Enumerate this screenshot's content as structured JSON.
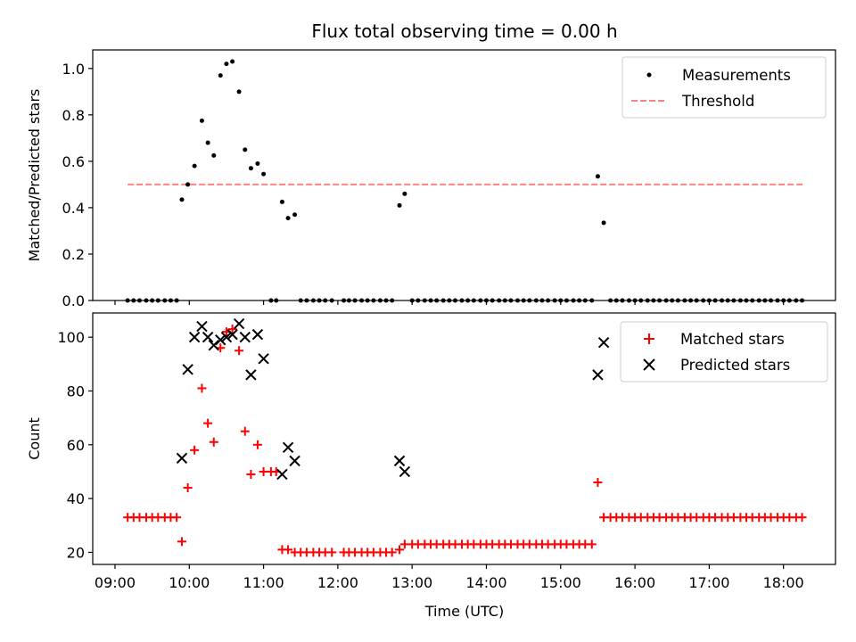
{
  "chart_data": {
    "title": "Flux total observing time = 0.00 h",
    "xlabel": "Time (UTC)",
    "x_ticks": [
      "09:00",
      "10:00",
      "11:00",
      "12:00",
      "13:00",
      "14:00",
      "15:00",
      "16:00",
      "17:00",
      "18:00"
    ],
    "x_tick_hours": [
      9,
      10,
      11,
      12,
      13,
      14,
      15,
      16,
      17,
      18
    ],
    "xlim_hours": [
      8.7,
      18.7
    ],
    "panels": [
      {
        "type": "scatter",
        "ylabel": "Matched/Predicted stars",
        "ylim": [
          0,
          1.08
        ],
        "y_ticks": [
          "0.0",
          "0.2",
          "0.4",
          "0.6",
          "0.8",
          "1.0"
        ],
        "y_tick_values": [
          0,
          0.2,
          0.4,
          0.6,
          0.8,
          1.0
        ],
        "legend": {
          "position": "upper right",
          "entries": [
            "Measurements",
            "Threshold"
          ]
        },
        "threshold": {
          "name": "Threshold",
          "value": 0.5,
          "x_range_hours": [
            9.17,
            18.27
          ],
          "color": "#ff8080",
          "style": "dashed"
        },
        "series": [
          {
            "name": "Measurements",
            "marker": "dot",
            "color": "#000000",
            "x_hours": [
              9.17,
              9.25,
              9.33,
              9.42,
              9.5,
              9.58,
              9.67,
              9.75,
              9.83,
              9.9,
              9.98,
              10.07,
              10.17,
              10.25,
              10.33,
              10.42,
              10.5,
              10.58,
              10.67,
              10.75,
              10.83,
              10.92,
              11.0,
              11.1,
              11.17,
              11.25,
              11.33,
              11.42,
              11.5,
              11.58,
              11.67,
              11.75,
              11.83,
              11.92,
              12.08,
              12.15,
              12.23,
              12.32,
              12.4,
              12.48,
              12.57,
              12.65,
              12.73,
              12.83,
              12.9,
              13.0,
              13.08,
              13.17,
              13.25,
              13.33,
              13.42,
              13.5,
              13.58,
              13.67,
              13.75,
              13.83,
              13.92,
              14.0,
              14.08,
              14.17,
              14.25,
              14.33,
              14.42,
              14.5,
              14.58,
              14.67,
              14.75,
              14.83,
              14.92,
              15.0,
              15.08,
              15.17,
              15.25,
              15.33,
              15.42,
              15.5,
              15.58,
              15.67,
              15.75,
              15.83,
              15.92,
              16.0,
              16.08,
              16.17,
              16.25,
              16.33,
              16.42,
              16.5,
              16.58,
              16.67,
              16.75,
              16.83,
              16.92,
              17.0,
              17.08,
              17.17,
              17.25,
              17.33,
              17.42,
              17.5,
              17.58,
              17.67,
              17.75,
              17.83,
              17.92,
              18.0,
              18.08,
              18.17,
              18.25
            ],
            "values": [
              0,
              0,
              0,
              0,
              0,
              0,
              0,
              0,
              0,
              0.435,
              0.5,
              0.58,
              0.775,
              0.68,
              0.625,
              0.97,
              1.02,
              1.03,
              0.9,
              0.65,
              0.57,
              0.59,
              0.545,
              0,
              0,
              0.425,
              0.355,
              0.37,
              0,
              0,
              0,
              0,
              0,
              0,
              0,
              0,
              0,
              0,
              0,
              0,
              0,
              0,
              0,
              0.41,
              0.46,
              0,
              0,
              0,
              0,
              0,
              0,
              0,
              0,
              0,
              0,
              0,
              0,
              0,
              0,
              0,
              0,
              0,
              0,
              0,
              0,
              0,
              0,
              0,
              0,
              0,
              0,
              0,
              0,
              0,
              0,
              0.535,
              0.335,
              0,
              0,
              0,
              0,
              0,
              0,
              0,
              0,
              0,
              0,
              0,
              0,
              0,
              0,
              0,
              0,
              0,
              0,
              0,
              0,
              0,
              0,
              0,
              0,
              0,
              0,
              0,
              0,
              0,
              0,
              0,
              0
            ]
          }
        ]
      },
      {
        "type": "scatter",
        "ylabel": "Count",
        "ylim": [
          15.5,
          109
        ],
        "y_ticks": [
          "20",
          "40",
          "60",
          "80",
          "100"
        ],
        "y_tick_values": [
          20,
          40,
          60,
          80,
          100
        ],
        "legend": {
          "position": "upper right",
          "entries": [
            "Matched stars",
            "Predicted stars"
          ]
        },
        "series": [
          {
            "name": "Matched stars",
            "marker": "plus",
            "color": "#ff0000",
            "x_hours": [
              9.17,
              9.25,
              9.33,
              9.42,
              9.5,
              9.58,
              9.67,
              9.75,
              9.83,
              9.9,
              9.98,
              10.07,
              10.17,
              10.25,
              10.33,
              10.42,
              10.5,
              10.58,
              10.67,
              10.75,
              10.83,
              10.92,
              11.0,
              11.1,
              11.17,
              11.25,
              11.33,
              11.42,
              11.5,
              11.58,
              11.67,
              11.75,
              11.83,
              11.92,
              12.08,
              12.15,
              12.23,
              12.32,
              12.4,
              12.48,
              12.57,
              12.65,
              12.73,
              12.83,
              12.9,
              13.0,
              13.08,
              13.17,
              13.25,
              13.33,
              13.42,
              13.5,
              13.58,
              13.67,
              13.75,
              13.83,
              13.92,
              14.0,
              14.08,
              14.17,
              14.25,
              14.33,
              14.42,
              14.5,
              14.58,
              14.67,
              14.75,
              14.83,
              14.92,
              15.0,
              15.08,
              15.17,
              15.25,
              15.33,
              15.42,
              15.5,
              15.58,
              15.67,
              15.75,
              15.83,
              15.92,
              16.0,
              16.08,
              16.17,
              16.25,
              16.33,
              16.42,
              16.5,
              16.58,
              16.67,
              16.75,
              16.83,
              16.92,
              17.0,
              17.08,
              17.17,
              17.25,
              17.33,
              17.42,
              17.5,
              17.58,
              17.67,
              17.75,
              17.83,
              17.92,
              18.0,
              18.08,
              18.17,
              18.25
            ],
            "values": [
              33,
              33,
              33,
              33,
              33,
              33,
              33,
              33,
              33,
              24,
              44,
              58,
              81,
              68,
              61,
              96,
              102,
              103,
              95,
              65,
              49,
              60,
              50,
              50,
              50,
              21,
              21,
              20,
              20,
              20,
              20,
              20,
              20,
              20,
              20,
              20,
              20,
              20,
              20,
              20,
              20,
              20,
              20,
              21,
              23,
              23,
              23,
              23,
              23,
              23,
              23,
              23,
              23,
              23,
              23,
              23,
              23,
              23,
              23,
              23,
              23,
              23,
              23,
              23,
              23,
              23,
              23,
              23,
              23,
              23,
              23,
              23,
              23,
              23,
              23,
              46,
              33,
              33,
              33,
              33,
              33,
              33,
              33,
              33,
              33,
              33,
              33,
              33,
              33,
              33,
              33,
              33,
              33,
              33,
              33,
              33,
              33,
              33,
              33,
              33,
              33,
              33,
              33,
              33,
              33,
              33,
              33,
              33,
              33
            ]
          },
          {
            "name": "Predicted stars",
            "marker": "x",
            "color": "#000000",
            "x_hours": [
              9.9,
              9.98,
              10.07,
              10.17,
              10.25,
              10.33,
              10.42,
              10.5,
              10.58,
              10.67,
              10.75,
              10.83,
              10.92,
              11.0,
              11.25,
              11.33,
              11.42,
              12.83,
              12.9,
              15.5,
              15.58
            ],
            "values": [
              55,
              88,
              100,
              104,
              100,
              97,
              99,
              100,
              101,
              105,
              100,
              86,
              101,
              92,
              49,
              59,
              54,
              54,
              50,
              86,
              98
            ]
          }
        ]
      }
    ]
  }
}
